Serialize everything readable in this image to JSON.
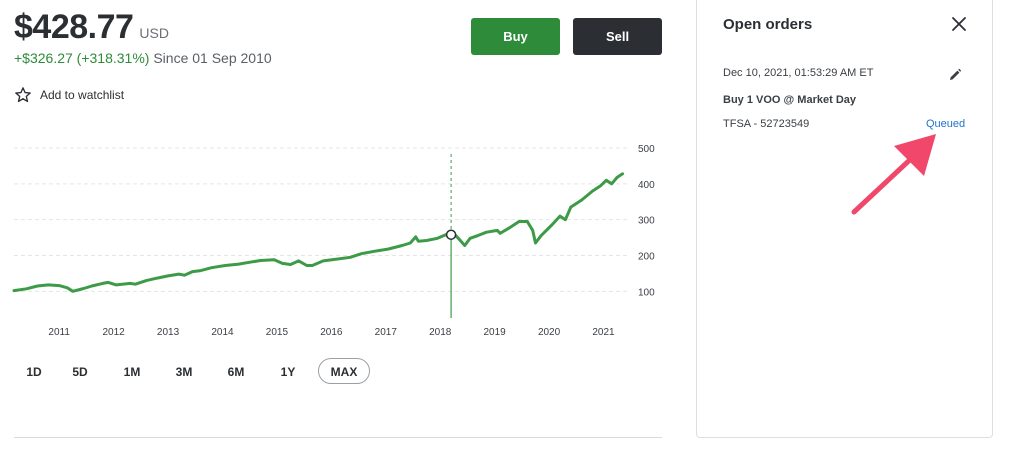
{
  "quote": {
    "price": "$428.77",
    "currency": "USD",
    "change": "+$326.27 (+318.31%)",
    "since": "Since 01 Sep 2010",
    "watchlist_label": "Add to watchlist"
  },
  "actions": {
    "buy_label": "Buy",
    "sell_label": "Sell"
  },
  "chart_data": {
    "type": "line",
    "series": [
      {
        "values": [
          {
            "x": 2010.67,
            "y": 102
          },
          {
            "x": 2010.9,
            "y": 107
          },
          {
            "x": 2011.1,
            "y": 115
          },
          {
            "x": 2011.3,
            "y": 118
          },
          {
            "x": 2011.5,
            "y": 116
          },
          {
            "x": 2011.65,
            "y": 110
          },
          {
            "x": 2011.75,
            "y": 100
          },
          {
            "x": 2011.95,
            "y": 108
          },
          {
            "x": 2012.1,
            "y": 115
          },
          {
            "x": 2012.3,
            "y": 122
          },
          {
            "x": 2012.4,
            "y": 125
          },
          {
            "x": 2012.55,
            "y": 118
          },
          {
            "x": 2012.8,
            "y": 122
          },
          {
            "x": 2012.9,
            "y": 120
          },
          {
            "x": 2013.1,
            "y": 130
          },
          {
            "x": 2013.3,
            "y": 137
          },
          {
            "x": 2013.5,
            "y": 143
          },
          {
            "x": 2013.7,
            "y": 148
          },
          {
            "x": 2013.8,
            "y": 145
          },
          {
            "x": 2013.95,
            "y": 155
          },
          {
            "x": 2014.1,
            "y": 158
          },
          {
            "x": 2014.3,
            "y": 166
          },
          {
            "x": 2014.55,
            "y": 172
          },
          {
            "x": 2014.8,
            "y": 176
          },
          {
            "x": 2014.95,
            "y": 180
          },
          {
            "x": 2015.2,
            "y": 186
          },
          {
            "x": 2015.45,
            "y": 188
          },
          {
            "x": 2015.6,
            "y": 178
          },
          {
            "x": 2015.75,
            "y": 175
          },
          {
            "x": 2015.9,
            "y": 185
          },
          {
            "x": 2016.05,
            "y": 172
          },
          {
            "x": 2016.15,
            "y": 172
          },
          {
            "x": 2016.35,
            "y": 185
          },
          {
            "x": 2016.6,
            "y": 190
          },
          {
            "x": 2016.85,
            "y": 195
          },
          {
            "x": 2017.05,
            "y": 205
          },
          {
            "x": 2017.3,
            "y": 212
          },
          {
            "x": 2017.55,
            "y": 218
          },
          {
            "x": 2017.8,
            "y": 228
          },
          {
            "x": 2017.95,
            "y": 235
          },
          {
            "x": 2018.05,
            "y": 252
          },
          {
            "x": 2018.1,
            "y": 240
          },
          {
            "x": 2018.25,
            "y": 242
          },
          {
            "x": 2018.45,
            "y": 248
          },
          {
            "x": 2018.6,
            "y": 258
          },
          {
            "x": 2018.75,
            "y": 262
          },
          {
            "x": 2018.85,
            "y": 245
          },
          {
            "x": 2018.95,
            "y": 228
          },
          {
            "x": 2019.05,
            "y": 248
          },
          {
            "x": 2019.2,
            "y": 256
          },
          {
            "x": 2019.35,
            "y": 265
          },
          {
            "x": 2019.55,
            "y": 270
          },
          {
            "x": 2019.6,
            "y": 262
          },
          {
            "x": 2019.75,
            "y": 275
          },
          {
            "x": 2019.95,
            "y": 295
          },
          {
            "x": 2020.1,
            "y": 295
          },
          {
            "x": 2020.2,
            "y": 270
          },
          {
            "x": 2020.25,
            "y": 235
          },
          {
            "x": 2020.35,
            "y": 255
          },
          {
            "x": 2020.55,
            "y": 285
          },
          {
            "x": 2020.7,
            "y": 310
          },
          {
            "x": 2020.8,
            "y": 300
          },
          {
            "x": 2020.9,
            "y": 335
          },
          {
            "x": 2021.1,
            "y": 355
          },
          {
            "x": 2021.3,
            "y": 380
          },
          {
            "x": 2021.45,
            "y": 395
          },
          {
            "x": 2021.55,
            "y": 410
          },
          {
            "x": 2021.65,
            "y": 400
          },
          {
            "x": 2021.75,
            "y": 418
          },
          {
            "x": 2021.85,
            "y": 428
          }
        ]
      }
    ],
    "crosshair": {
      "x": 2018.7,
      "y": 258
    },
    "xticks": [
      "2011",
      "2012",
      "2013",
      "2014",
      "2015",
      "2016",
      "2017",
      "2018",
      "2019",
      "2020",
      "2021"
    ],
    "yticks": [
      "100",
      "200",
      "300",
      "400",
      "500"
    ],
    "xlim": [
      2010.67,
      2021.95
    ],
    "ylim": [
      20,
      500
    ],
    "grid": true,
    "line_color": "#3d9a47"
  },
  "ranges": {
    "items": [
      "1D",
      "5D",
      "1M",
      "3M",
      "6M",
      "1Y",
      "MAX"
    ],
    "active": "MAX"
  },
  "orders": {
    "title": "Open orders",
    "date": "Dec 10, 2021, 01:53:29 AM ET",
    "description": "Buy 1 VOO @ Market Day",
    "account": "TFSA - 52723549",
    "status": "Queued"
  },
  "colors": {
    "buy": "#2e8b3a",
    "sell": "#2b2f33",
    "gain": "#2e8b3a",
    "link": "#1f73c9",
    "annotation_arrow": "#f0476b"
  }
}
